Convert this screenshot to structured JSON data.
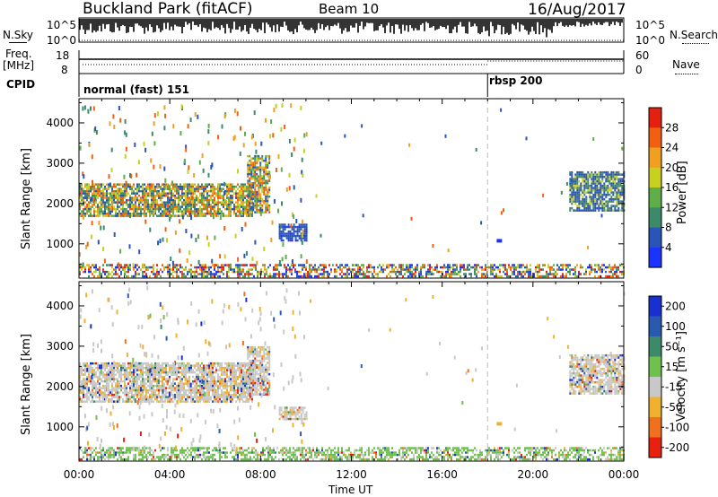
{
  "header": {
    "site": "Buckland Park (fitACF)",
    "beam": "Beam 10",
    "date": "16/Aug/2017"
  },
  "nsky_panel": {
    "left_label": "N.Sky",
    "right_label": "N.Search",
    "tick_top": "10^5",
    "tick_bottom": "10^0"
  },
  "freq_panel": {
    "left_label_line1": "Freq.",
    "left_label_line2": "[MHz]",
    "right_label": "Nave",
    "left_ticks": [
      "18",
      "8"
    ],
    "right_ticks": [
      "60",
      "0"
    ]
  },
  "cpid_panel": {
    "label": "CPID",
    "segments": [
      {
        "name": "normal (fast) 151",
        "start_hour": 0
      },
      {
        "name": "rbsp 200",
        "start_hour": 18
      }
    ]
  },
  "time_axis": {
    "label": "Time UT",
    "ticks": [
      "00:00",
      "04:00",
      "08:00",
      "12:00",
      "16:00",
      "20:00",
      "00:00"
    ]
  },
  "chart_data": [
    {
      "type": "heatmap",
      "name": "power",
      "ylabel": "Slant Range [km]",
      "xlabel": "",
      "x_range_hours": [
        0,
        24
      ],
      "ylim": [
        150,
        4600
      ],
      "yticks": [
        "1000",
        "2000",
        "3000",
        "4000"
      ],
      "colorbar": {
        "label": "Power [dB]",
        "ticks": [
          "4",
          "8",
          "12",
          "16",
          "20",
          "24",
          "28"
        ],
        "colors": [
          "#1a33ff",
          "#2a55b8",
          "#3d8a6a",
          "#5fae4a",
          "#c8d020",
          "#f0a020",
          "#f06010",
          "#e52010"
        ]
      },
      "regions": [
        {
          "t": [
            0.0,
            7.6
          ],
          "r": [
            1700,
            2500
          ],
          "level": "16-24"
        },
        {
          "t": [
            7.4,
            8.4
          ],
          "r": [
            1800,
            3200
          ],
          "level": "16-24"
        },
        {
          "t": [
            8.8,
            10.0
          ],
          "r": [
            1100,
            1500
          ],
          "level": "4-8"
        },
        {
          "t": [
            21.6,
            24.0
          ],
          "r": [
            1800,
            2800
          ],
          "level": "8-16"
        },
        {
          "t": [
            0.0,
            24.0
          ],
          "r": [
            200,
            500
          ],
          "level": "8-28"
        }
      ],
      "transition_hour": 18
    },
    {
      "type": "heatmap",
      "name": "velocity",
      "ylabel": "Slant Range [km]",
      "xlabel": "Time UT",
      "x_range_hours": [
        0,
        24
      ],
      "ylim": [
        150,
        4600
      ],
      "yticks": [
        "1000",
        "2000",
        "3000",
        "4000"
      ],
      "colorbar": {
        "label": "Velocity [m s⁻¹]",
        "ticks": [
          "200",
          "100",
          "50",
          "15",
          "-15",
          "-50",
          "-100",
          "-200"
        ],
        "colors": [
          "#1a2fd0",
          "#2a5ab0",
          "#3d8a6a",
          "#70c050",
          "#c8c8c8",
          "#f0b030",
          "#f07020",
          "#e82010"
        ]
      },
      "regions": [
        {
          "t": [
            0.0,
            7.6
          ],
          "r": [
            1600,
            2600
          ],
          "level": "-15 to 15"
        },
        {
          "t": [
            7.4,
            8.4
          ],
          "r": [
            1800,
            3000
          ],
          "level": "-15 to 15"
        },
        {
          "t": [
            8.8,
            10.0
          ],
          "r": [
            1200,
            1500
          ],
          "level": "-15 to 15"
        },
        {
          "t": [
            21.6,
            24.0
          ],
          "r": [
            1800,
            2800
          ],
          "level": "-15 to 15"
        },
        {
          "t": [
            0.0,
            24.0
          ],
          "r": [
            200,
            500
          ],
          "level": "15 to 50"
        }
      ],
      "transition_hour": 18
    }
  ]
}
